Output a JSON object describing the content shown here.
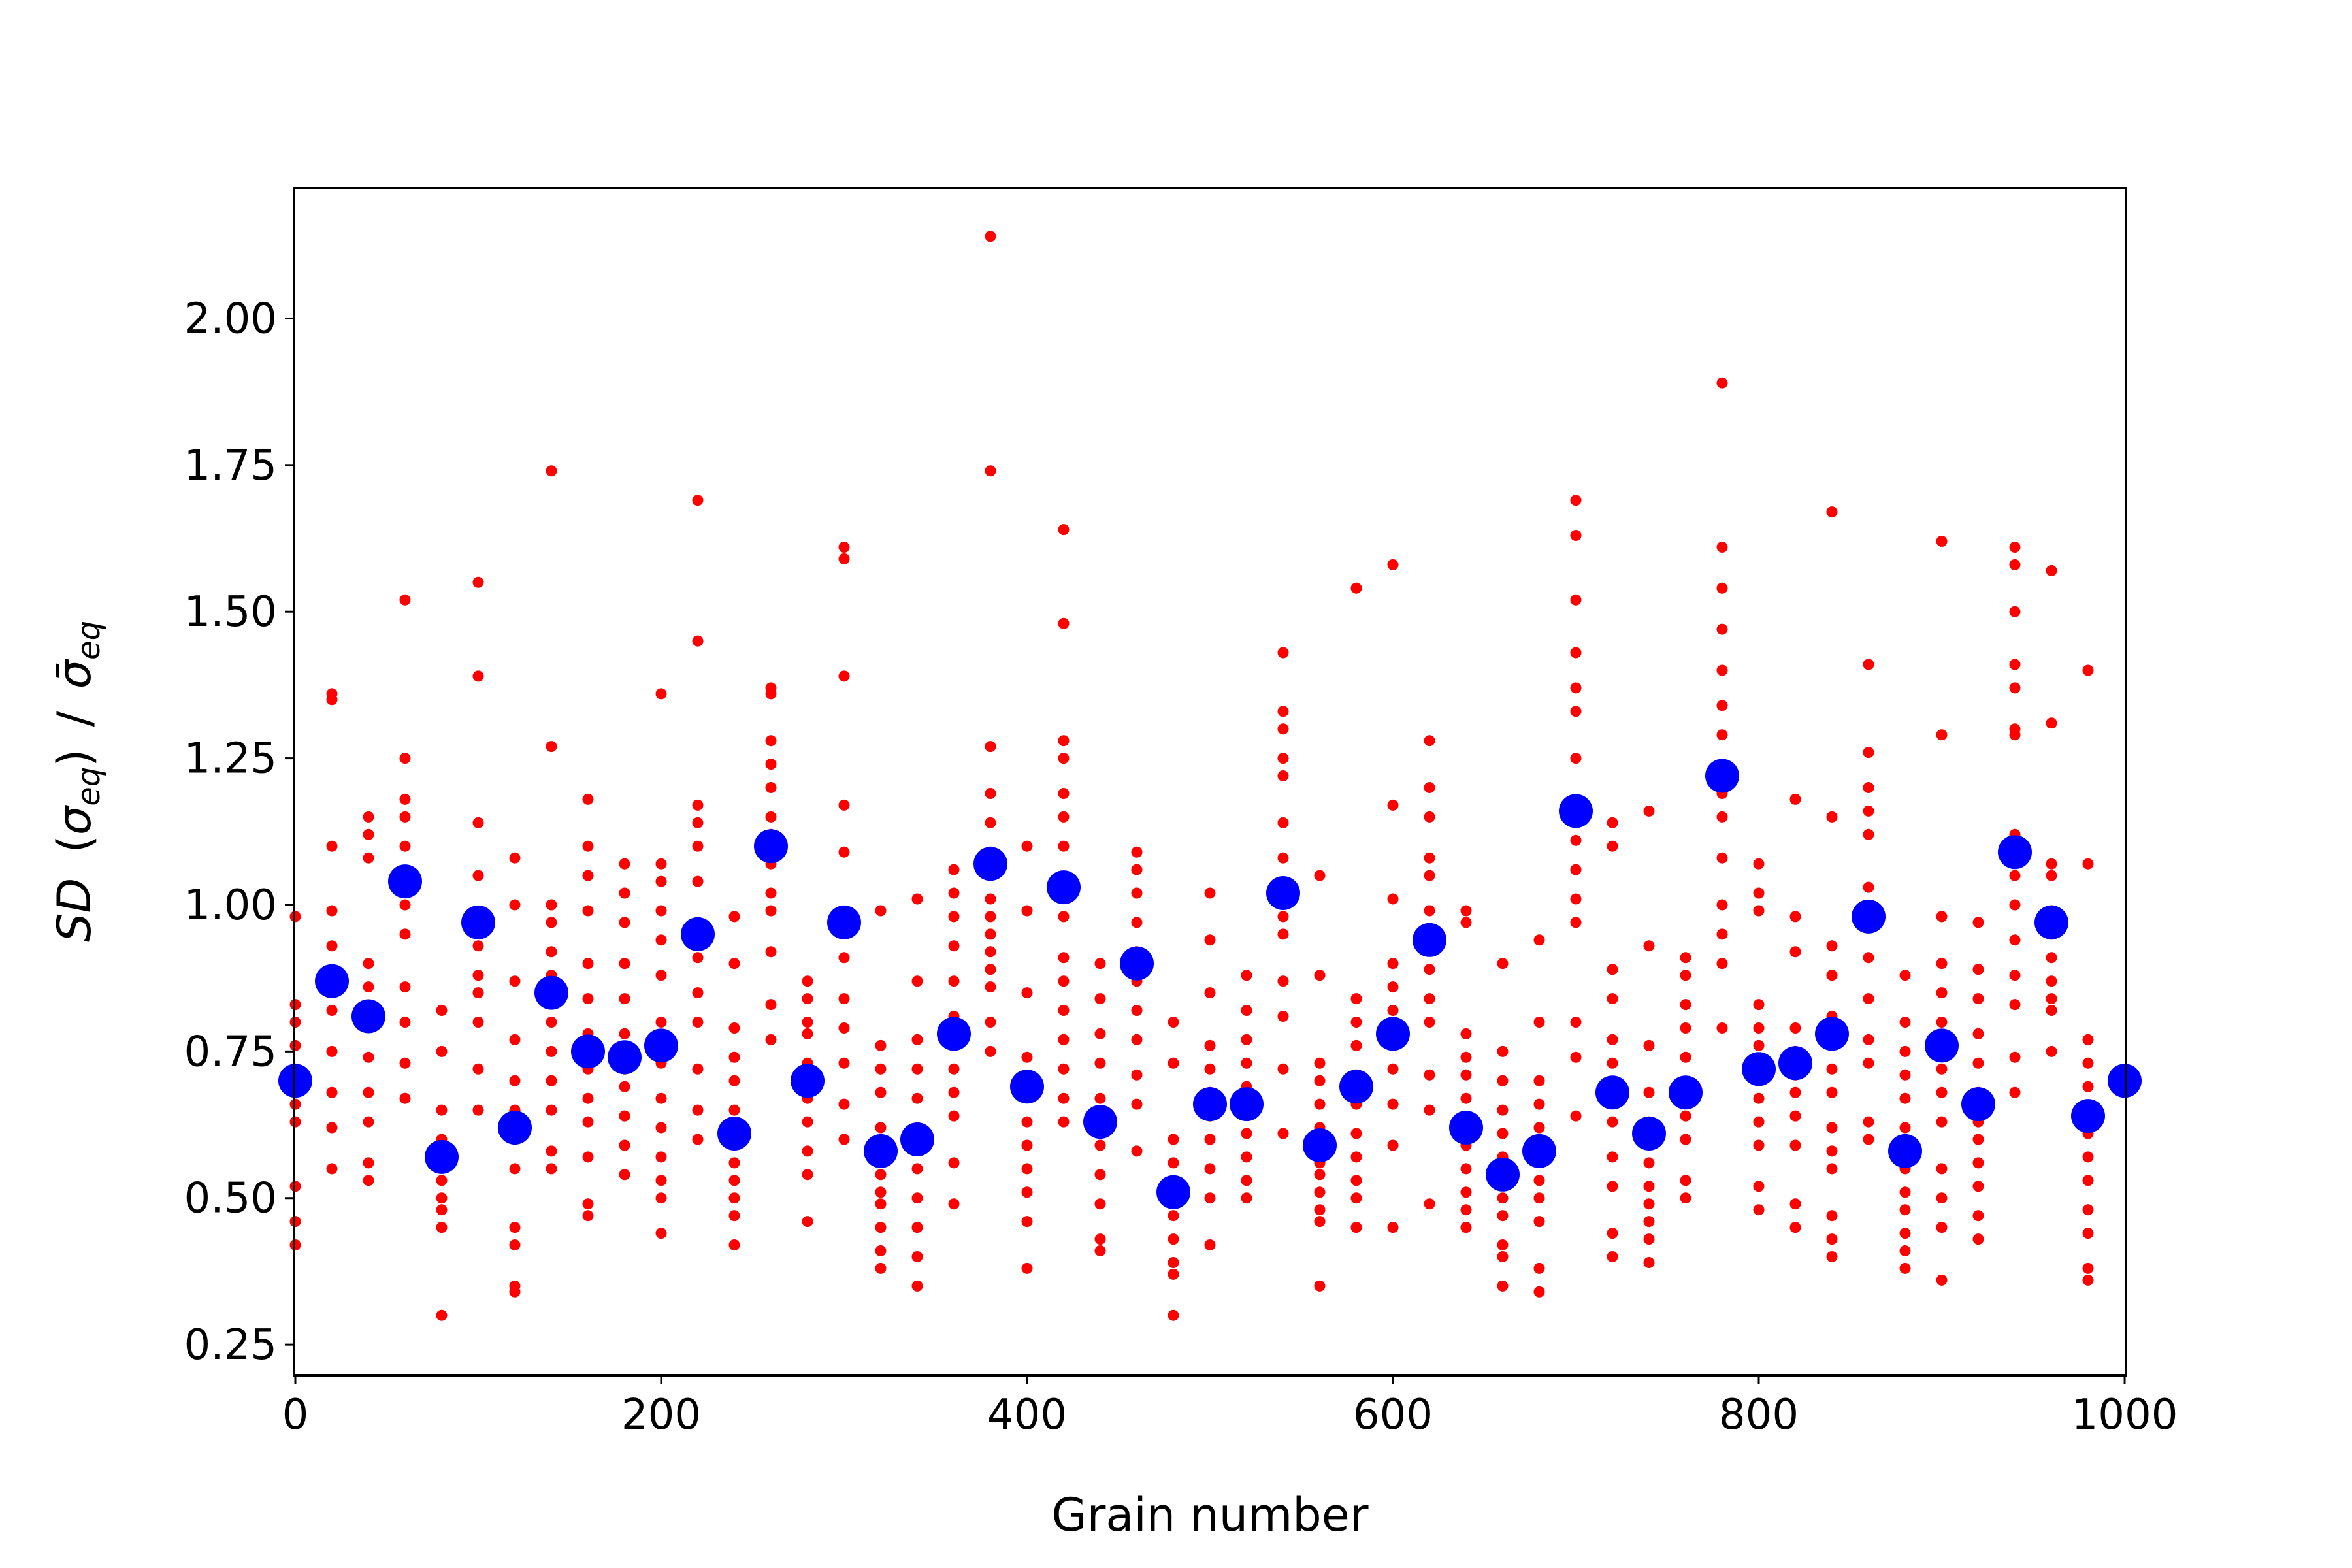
{
  "chart_data": {
    "type": "scatter",
    "xlabel": "Grain number",
    "ylabel": {
      "prefix": "SD",
      "numerator_symbol": "σ",
      "numerator_subscript": "eq",
      "divider": "/",
      "denominator_symbol": "σ̄",
      "denominator_subscript": "eq"
    },
    "xlim": [
      0,
      1000
    ],
    "ylim": [
      0.2,
      2.22
    ],
    "x_ticks": [
      0,
      200,
      400,
      600,
      800,
      1000
    ],
    "x_tick_labels": [
      "0",
      "200",
      "400",
      "600",
      "800",
      "1000"
    ],
    "y_ticks": [
      0.25,
      0.5,
      0.75,
      1.0,
      1.25,
      1.5,
      1.75,
      2.0
    ],
    "y_tick_labels": [
      "0.25",
      "0.50",
      "0.75",
      "1.00",
      "1.25",
      "1.50",
      "1.75",
      "2.00"
    ],
    "grid": false,
    "legend": "none",
    "colors": {
      "individual": "#ff0000",
      "mean": "#0000ff"
    },
    "series": [
      {
        "marker": "small red dot",
        "color": "#ff0000",
        "groups": [
          {
            "x": 0,
            "y": [
              0.42,
              0.46,
              0.52,
              0.63,
              0.66,
              0.72,
              0.76,
              0.8,
              0.83,
              0.98
            ]
          },
          {
            "x": 20,
            "y": [
              0.55,
              0.62,
              0.68,
              0.75,
              0.82,
              0.88,
              0.93,
              0.99,
              1.1,
              1.35,
              1.36
            ]
          },
          {
            "x": 40,
            "y": [
              0.53,
              0.56,
              0.63,
              0.68,
              0.74,
              0.8,
              0.86,
              0.9,
              1.08,
              1.12,
              1.15
            ]
          },
          {
            "x": 60,
            "y": [
              0.67,
              0.73,
              0.8,
              0.86,
              0.95,
              1.0,
              1.05,
              1.1,
              1.15,
              1.18,
              1.25,
              1.52
            ]
          },
          {
            "x": 80,
            "y": [
              0.3,
              0.45,
              0.48,
              0.5,
              0.53,
              0.6,
              0.65,
              0.75,
              0.82
            ]
          },
          {
            "x": 100,
            "y": [
              0.65,
              0.72,
              0.8,
              0.85,
              0.88,
              0.93,
              0.98,
              1.05,
              1.14,
              1.39,
              1.55
            ]
          },
          {
            "x": 120,
            "y": [
              0.34,
              0.35,
              0.42,
              0.45,
              0.55,
              0.6,
              0.65,
              0.7,
              0.77,
              0.87,
              1.0,
              1.08
            ]
          },
          {
            "x": 140,
            "y": [
              0.55,
              0.58,
              0.65,
              0.7,
              0.75,
              0.8,
              0.88,
              0.92,
              0.97,
              1.0,
              1.27,
              1.74
            ]
          },
          {
            "x": 160,
            "y": [
              0.47,
              0.49,
              0.57,
              0.63,
              0.67,
              0.72,
              0.78,
              0.84,
              0.9,
              0.99,
              1.05,
              1.1,
              1.18
            ]
          },
          {
            "x": 180,
            "y": [
              0.54,
              0.59,
              0.64,
              0.69,
              0.72,
              0.78,
              0.84,
              0.9,
              0.97,
              1.02,
              1.07
            ]
          },
          {
            "x": 200,
            "y": [
              0.44,
              0.5,
              0.53,
              0.57,
              0.62,
              0.67,
              0.73,
              0.8,
              0.88,
              0.94,
              0.99,
              1.04,
              1.07,
              1.36
            ]
          },
          {
            "x": 220,
            "y": [
              0.6,
              0.65,
              0.72,
              0.8,
              0.85,
              0.91,
              0.97,
              1.04,
              1.1,
              1.14,
              1.17,
              1.45,
              1.69
            ]
          },
          {
            "x": 240,
            "y": [
              0.42,
              0.47,
              0.5,
              0.53,
              0.56,
              0.6,
              0.65,
              0.7,
              0.74,
              0.79,
              0.9,
              0.98
            ]
          },
          {
            "x": 260,
            "y": [
              0.77,
              0.83,
              0.92,
              0.99,
              1.02,
              1.07,
              1.12,
              1.15,
              1.2,
              1.24,
              1.28,
              1.36,
              1.37
            ]
          },
          {
            "x": 280,
            "y": [
              0.46,
              0.54,
              0.58,
              0.63,
              0.67,
              0.73,
              0.78,
              0.8,
              0.84,
              0.87
            ]
          },
          {
            "x": 300,
            "y": [
              0.6,
              0.66,
              0.73,
              0.79,
              0.84,
              0.91,
              0.98,
              1.09,
              1.17,
              1.39,
              1.59,
              1.61
            ]
          },
          {
            "x": 320,
            "y": [
              0.38,
              0.41,
              0.45,
              0.49,
              0.51,
              0.54,
              0.58,
              0.62,
              0.68,
              0.72,
              0.76,
              0.99
            ]
          },
          {
            "x": 340,
            "y": [
              0.35,
              0.4,
              0.45,
              0.5,
              0.55,
              0.62,
              0.67,
              0.72,
              0.77,
              0.87,
              1.01
            ]
          },
          {
            "x": 360,
            "y": [
              0.49,
              0.56,
              0.64,
              0.68,
              0.72,
              0.78,
              0.81,
              0.87,
              0.93,
              0.98,
              1.02,
              1.06
            ]
          },
          {
            "x": 380,
            "y": [
              0.75,
              0.8,
              0.86,
              0.89,
              0.92,
              0.95,
              0.98,
              1.01,
              1.09,
              1.14,
              1.19,
              1.27,
              1.74,
              2.14
            ]
          },
          {
            "x": 400,
            "y": [
              0.38,
              0.46,
              0.51,
              0.55,
              0.59,
              0.63,
              0.7,
              0.74,
              0.85,
              0.99,
              1.1
            ]
          },
          {
            "x": 420,
            "y": [
              0.63,
              0.67,
              0.72,
              0.77,
              0.82,
              0.87,
              0.91,
              0.98,
              1.1,
              1.15,
              1.19,
              1.25,
              1.28,
              1.48,
              1.64
            ]
          },
          {
            "x": 440,
            "y": [
              0.41,
              0.43,
              0.49,
              0.54,
              0.59,
              0.64,
              0.67,
              0.73,
              0.78,
              0.84,
              0.9
            ]
          },
          {
            "x": 460,
            "y": [
              0.58,
              0.66,
              0.71,
              0.77,
              0.82,
              0.87,
              0.92,
              0.97,
              1.02,
              1.06,
              1.09
            ]
          },
          {
            "x": 480,
            "y": [
              0.3,
              0.37,
              0.39,
              0.43,
              0.47,
              0.52,
              0.56,
              0.6,
              0.73,
              0.8
            ]
          },
          {
            "x": 500,
            "y": [
              0.42,
              0.5,
              0.55,
              0.6,
              0.64,
              0.68,
              0.72,
              0.76,
              0.85,
              0.94,
              1.02
            ]
          },
          {
            "x": 520,
            "y": [
              0.5,
              0.53,
              0.57,
              0.61,
              0.65,
              0.69,
              0.73,
              0.77,
              0.82,
              0.88
            ]
          },
          {
            "x": 540,
            "y": [
              0.61,
              0.72,
              0.81,
              0.87,
              0.95,
              0.98,
              1.02,
              1.08,
              1.14,
              1.22,
              1.25,
              1.3,
              1.33,
              1.43
            ]
          },
          {
            "x": 560,
            "y": [
              0.35,
              0.46,
              0.48,
              0.51,
              0.54,
              0.56,
              0.62,
              0.66,
              0.7,
              0.73,
              0.88,
              1.05
            ]
          },
          {
            "x": 580,
            "y": [
              0.45,
              0.5,
              0.53,
              0.57,
              0.61,
              0.66,
              0.71,
              0.76,
              0.8,
              0.84,
              1.54
            ]
          },
          {
            "x": 600,
            "y": [
              0.45,
              0.59,
              0.66,
              0.72,
              0.76,
              0.82,
              0.86,
              0.9,
              1.01,
              1.17,
              1.58
            ]
          },
          {
            "x": 620,
            "y": [
              0.49,
              0.65,
              0.71,
              0.8,
              0.84,
              0.89,
              0.94,
              0.99,
              1.05,
              1.08,
              1.15,
              1.2,
              1.28
            ]
          },
          {
            "x": 640,
            "y": [
              0.45,
              0.48,
              0.51,
              0.55,
              0.59,
              0.63,
              0.67,
              0.71,
              0.74,
              0.78,
              0.97,
              0.99
            ]
          },
          {
            "x": 660,
            "y": [
              0.35,
              0.4,
              0.42,
              0.47,
              0.5,
              0.53,
              0.57,
              0.61,
              0.65,
              0.7,
              0.75,
              0.9
            ]
          },
          {
            "x": 680,
            "y": [
              0.34,
              0.38,
              0.46,
              0.5,
              0.53,
              0.57,
              0.62,
              0.66,
              0.7,
              0.8,
              0.94
            ]
          },
          {
            "x": 700,
            "y": [
              0.64,
              0.74,
              0.8,
              0.97,
              1.01,
              1.06,
              1.11,
              1.16,
              1.25,
              1.33,
              1.37,
              1.43,
              1.52,
              1.63,
              1.69
            ]
          },
          {
            "x": 720,
            "y": [
              0.4,
              0.44,
              0.52,
              0.57,
              0.63,
              0.68,
              0.73,
              0.77,
              0.84,
              0.89,
              1.1,
              1.14
            ]
          },
          {
            "x": 740,
            "y": [
              0.39,
              0.43,
              0.46,
              0.49,
              0.52,
              0.56,
              0.6,
              0.63,
              0.68,
              0.76,
              0.93,
              1.16
            ]
          },
          {
            "x": 760,
            "y": [
              0.5,
              0.53,
              0.6,
              0.64,
              0.69,
              0.74,
              0.79,
              0.83,
              0.88,
              0.91
            ]
          },
          {
            "x": 780,
            "y": [
              0.79,
              0.9,
              0.95,
              1.0,
              1.08,
              1.15,
              1.19,
              1.22,
              1.29,
              1.34,
              1.4,
              1.47,
              1.54,
              1.61,
              1.89
            ]
          },
          {
            "x": 800,
            "y": [
              0.48,
              0.52,
              0.59,
              0.63,
              0.67,
              0.72,
              0.76,
              0.79,
              0.83,
              0.99,
              1.02,
              1.07
            ]
          },
          {
            "x": 820,
            "y": [
              0.45,
              0.49,
              0.59,
              0.64,
              0.68,
              0.71,
              0.75,
              0.79,
              0.92,
              0.98,
              1.18
            ]
          },
          {
            "x": 840,
            "y": [
              0.4,
              0.43,
              0.47,
              0.55,
              0.58,
              0.62,
              0.68,
              0.72,
              0.76,
              0.81,
              0.88,
              0.93,
              1.15,
              1.67
            ]
          },
          {
            "x": 860,
            "y": [
              0.6,
              0.63,
              0.73,
              0.77,
              0.84,
              0.91,
              0.98,
              1.03,
              1.12,
              1.16,
              1.2,
              1.26,
              1.41
            ]
          },
          {
            "x": 880,
            "y": [
              0.38,
              0.41,
              0.44,
              0.48,
              0.51,
              0.55,
              0.62,
              0.67,
              0.71,
              0.75,
              0.8,
              0.88
            ]
          },
          {
            "x": 900,
            "y": [
              0.36,
              0.45,
              0.5,
              0.55,
              0.63,
              0.68,
              0.72,
              0.76,
              0.8,
              0.85,
              0.9,
              0.98,
              1.29,
              1.62
            ]
          },
          {
            "x": 920,
            "y": [
              0.43,
              0.47,
              0.52,
              0.56,
              0.6,
              0.63,
              0.68,
              0.73,
              0.78,
              0.84,
              0.89,
              0.97
            ]
          },
          {
            "x": 940,
            "y": [
              0.68,
              0.74,
              0.83,
              0.88,
              0.94,
              1.0,
              1.05,
              1.12,
              1.29,
              1.3,
              1.37,
              1.41,
              1.5,
              1.58,
              1.61
            ]
          },
          {
            "x": 960,
            "y": [
              0.75,
              0.82,
              0.84,
              0.87,
              0.91,
              0.95,
              0.99,
              1.05,
              1.07,
              1.31,
              1.57
            ]
          },
          {
            "x": 980,
            "y": [
              0.36,
              0.38,
              0.44,
              0.48,
              0.53,
              0.57,
              0.61,
              0.65,
              0.69,
              0.73,
              0.77,
              1.07,
              1.4
            ]
          },
          {
            "x": 1000,
            "y": [
              0.7
            ]
          }
        ]
      },
      {
        "marker": "large blue dot",
        "color": "#0000ff",
        "x": [
          0,
          20,
          40,
          60,
          80,
          100,
          120,
          140,
          160,
          180,
          200,
          220,
          240,
          260,
          280,
          300,
          320,
          340,
          360,
          380,
          400,
          420,
          440,
          460,
          480,
          500,
          520,
          540,
          560,
          580,
          600,
          620,
          640,
          660,
          680,
          700,
          720,
          740,
          760,
          780,
          800,
          820,
          840,
          860,
          880,
          900,
          920,
          940,
          960,
          980,
          1000
        ],
        "y": [
          0.7,
          0.87,
          0.81,
          1.04,
          0.57,
          0.97,
          0.62,
          0.85,
          0.75,
          0.74,
          0.76,
          0.95,
          0.61,
          1.1,
          0.7,
          0.97,
          0.58,
          0.6,
          0.78,
          1.07,
          0.69,
          1.03,
          0.63,
          0.9,
          0.51,
          0.66,
          0.66,
          1.02,
          0.59,
          0.69,
          0.78,
          0.94,
          0.62,
          0.54,
          0.58,
          1.16,
          0.68,
          0.61,
          0.68,
          1.22,
          0.72,
          0.73,
          0.78,
          0.98,
          0.58,
          0.76,
          0.66,
          1.09,
          0.97,
          0.64,
          0.7
        ]
      }
    ]
  }
}
